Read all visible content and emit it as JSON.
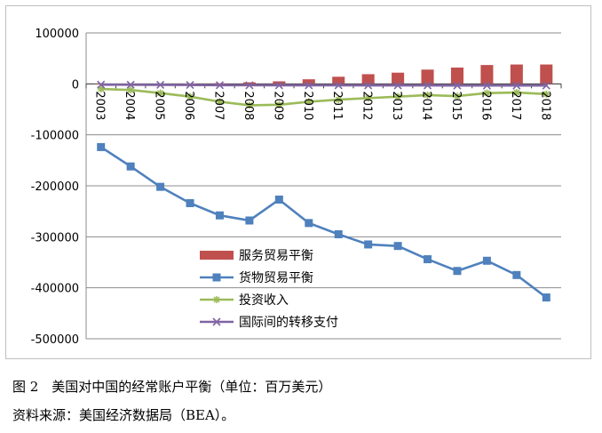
{
  "caption": "图 2　美国对中国的经常账户平衡（单位：百万美元）",
  "source": "资料来源：美国经济数据局（BEA）。",
  "chart_data": {
    "type": "line",
    "title": "",
    "xlabel": "",
    "ylabel": "",
    "ylim": [
      -500000,
      100000
    ],
    "y_ticks": [
      100000,
      0,
      -100000,
      -200000,
      -300000,
      -400000,
      -500000
    ],
    "y_tick_labels": [
      "100000",
      "0",
      "-100000",
      "-200000",
      "-300000",
      "-400000",
      "-500000"
    ],
    "categories": [
      "2003",
      "2004",
      "2005",
      "2006",
      "2007",
      "2008",
      "2009",
      "2010",
      "2011",
      "2012",
      "2013",
      "2014",
      "2015",
      "2016",
      "2017",
      "2018"
    ],
    "grid": true,
    "legend_position": "lower-center",
    "series": [
      {
        "name": "服务贸易平衡",
        "kind": "bar",
        "color": "#c0504d",
        "values": [
          -500,
          -300,
          200,
          500,
          1000,
          3000,
          5000,
          9000,
          14000,
          19000,
          22000,
          28000,
          32000,
          37000,
          38000,
          38000
        ]
      },
      {
        "name": "货物贸易平衡",
        "kind": "line",
        "marker": "square",
        "color": "#4f81bd",
        "values": [
          -124000,
          -162000,
          -202000,
          -234000,
          -258000,
          -268000,
          -227000,
          -273000,
          -295000,
          -315000,
          -318000,
          -344000,
          -367000,
          -347000,
          -375000,
          -419000
        ]
      },
      {
        "name": "投资收入",
        "kind": "line",
        "marker": "star",
        "color": "#9bbb59",
        "values": [
          -10000,
          -12000,
          -18000,
          -25000,
          -35000,
          -42000,
          -41000,
          -35000,
          -31000,
          -28000,
          -25000,
          -22000,
          -24000,
          -18000,
          -17000,
          -20000
        ]
      },
      {
        "name": "国际间的转移支付",
        "kind": "line",
        "marker": "x",
        "color": "#8064a2",
        "values": [
          -1500,
          -1800,
          -2000,
          -2200,
          -2500,
          -2700,
          -2800,
          -2800,
          -2900,
          -3000,
          -3000,
          -3100,
          -3200,
          -3200,
          -3300,
          -3300
        ]
      }
    ]
  }
}
